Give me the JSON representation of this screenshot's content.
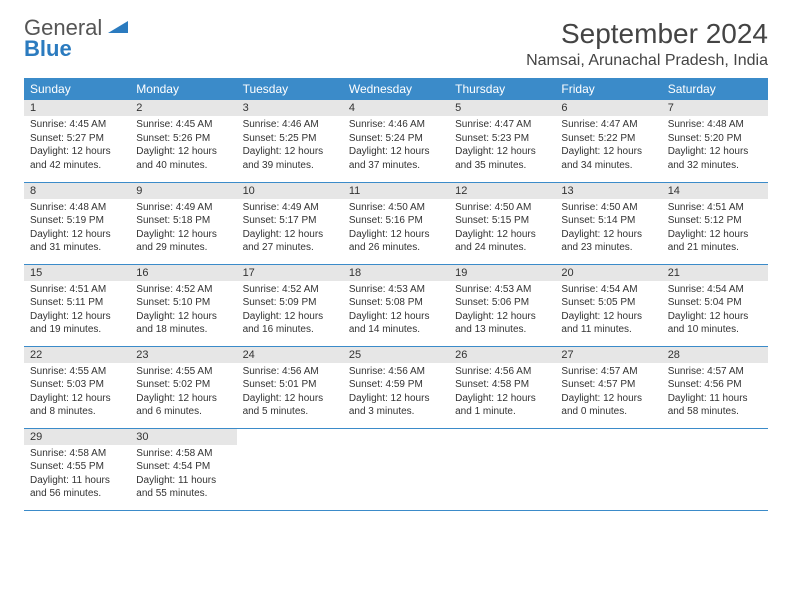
{
  "brand": {
    "line1": "General",
    "line2": "Blue"
  },
  "title": "September 2024",
  "location": "Namsai, Arunachal Pradesh, India",
  "colors": {
    "header_bg": "#3b8bc9",
    "header_text": "#ffffff",
    "daynum_bg": "#e6e6e6",
    "border": "#3b8bc9",
    "logo_gray": "#555555",
    "logo_blue": "#2b7bbf",
    "text": "#333333"
  },
  "typography": {
    "month_title_fontsize": 28,
    "location_fontsize": 16,
    "day_header_fontsize": 12,
    "daynum_fontsize": 11,
    "body_fontsize": 10
  },
  "day_headers": [
    "Sunday",
    "Monday",
    "Tuesday",
    "Wednesday",
    "Thursday",
    "Friday",
    "Saturday"
  ],
  "weeks": [
    [
      {
        "num": "1",
        "sunrise": "4:45 AM",
        "sunset": "5:27 PM",
        "daylight": "12 hours and 42 minutes."
      },
      {
        "num": "2",
        "sunrise": "4:45 AM",
        "sunset": "5:26 PM",
        "daylight": "12 hours and 40 minutes."
      },
      {
        "num": "3",
        "sunrise": "4:46 AM",
        "sunset": "5:25 PM",
        "daylight": "12 hours and 39 minutes."
      },
      {
        "num": "4",
        "sunrise": "4:46 AM",
        "sunset": "5:24 PM",
        "daylight": "12 hours and 37 minutes."
      },
      {
        "num": "5",
        "sunrise": "4:47 AM",
        "sunset": "5:23 PM",
        "daylight": "12 hours and 35 minutes."
      },
      {
        "num": "6",
        "sunrise": "4:47 AM",
        "sunset": "5:22 PM",
        "daylight": "12 hours and 34 minutes."
      },
      {
        "num": "7",
        "sunrise": "4:48 AM",
        "sunset": "5:20 PM",
        "daylight": "12 hours and 32 minutes."
      }
    ],
    [
      {
        "num": "8",
        "sunrise": "4:48 AM",
        "sunset": "5:19 PM",
        "daylight": "12 hours and 31 minutes."
      },
      {
        "num": "9",
        "sunrise": "4:49 AM",
        "sunset": "5:18 PM",
        "daylight": "12 hours and 29 minutes."
      },
      {
        "num": "10",
        "sunrise": "4:49 AM",
        "sunset": "5:17 PM",
        "daylight": "12 hours and 27 minutes."
      },
      {
        "num": "11",
        "sunrise": "4:50 AM",
        "sunset": "5:16 PM",
        "daylight": "12 hours and 26 minutes."
      },
      {
        "num": "12",
        "sunrise": "4:50 AM",
        "sunset": "5:15 PM",
        "daylight": "12 hours and 24 minutes."
      },
      {
        "num": "13",
        "sunrise": "4:50 AM",
        "sunset": "5:14 PM",
        "daylight": "12 hours and 23 minutes."
      },
      {
        "num": "14",
        "sunrise": "4:51 AM",
        "sunset": "5:12 PM",
        "daylight": "12 hours and 21 minutes."
      }
    ],
    [
      {
        "num": "15",
        "sunrise": "4:51 AM",
        "sunset": "5:11 PM",
        "daylight": "12 hours and 19 minutes."
      },
      {
        "num": "16",
        "sunrise": "4:52 AM",
        "sunset": "5:10 PM",
        "daylight": "12 hours and 18 minutes."
      },
      {
        "num": "17",
        "sunrise": "4:52 AM",
        "sunset": "5:09 PM",
        "daylight": "12 hours and 16 minutes."
      },
      {
        "num": "18",
        "sunrise": "4:53 AM",
        "sunset": "5:08 PM",
        "daylight": "12 hours and 14 minutes."
      },
      {
        "num": "19",
        "sunrise": "4:53 AM",
        "sunset": "5:06 PM",
        "daylight": "12 hours and 13 minutes."
      },
      {
        "num": "20",
        "sunrise": "4:54 AM",
        "sunset": "5:05 PM",
        "daylight": "12 hours and 11 minutes."
      },
      {
        "num": "21",
        "sunrise": "4:54 AM",
        "sunset": "5:04 PM",
        "daylight": "12 hours and 10 minutes."
      }
    ],
    [
      {
        "num": "22",
        "sunrise": "4:55 AM",
        "sunset": "5:03 PM",
        "daylight": "12 hours and 8 minutes."
      },
      {
        "num": "23",
        "sunrise": "4:55 AM",
        "sunset": "5:02 PM",
        "daylight": "12 hours and 6 minutes."
      },
      {
        "num": "24",
        "sunrise": "4:56 AM",
        "sunset": "5:01 PM",
        "daylight": "12 hours and 5 minutes."
      },
      {
        "num": "25",
        "sunrise": "4:56 AM",
        "sunset": "4:59 PM",
        "daylight": "12 hours and 3 minutes."
      },
      {
        "num": "26",
        "sunrise": "4:56 AM",
        "sunset": "4:58 PM",
        "daylight": "12 hours and 1 minute."
      },
      {
        "num": "27",
        "sunrise": "4:57 AM",
        "sunset": "4:57 PM",
        "daylight": "12 hours and 0 minutes."
      },
      {
        "num": "28",
        "sunrise": "4:57 AM",
        "sunset": "4:56 PM",
        "daylight": "11 hours and 58 minutes."
      }
    ],
    [
      {
        "num": "29",
        "sunrise": "4:58 AM",
        "sunset": "4:55 PM",
        "daylight": "11 hours and 56 minutes."
      },
      {
        "num": "30",
        "sunrise": "4:58 AM",
        "sunset": "4:54 PM",
        "daylight": "11 hours and 55 minutes."
      },
      null,
      null,
      null,
      null,
      null
    ]
  ]
}
